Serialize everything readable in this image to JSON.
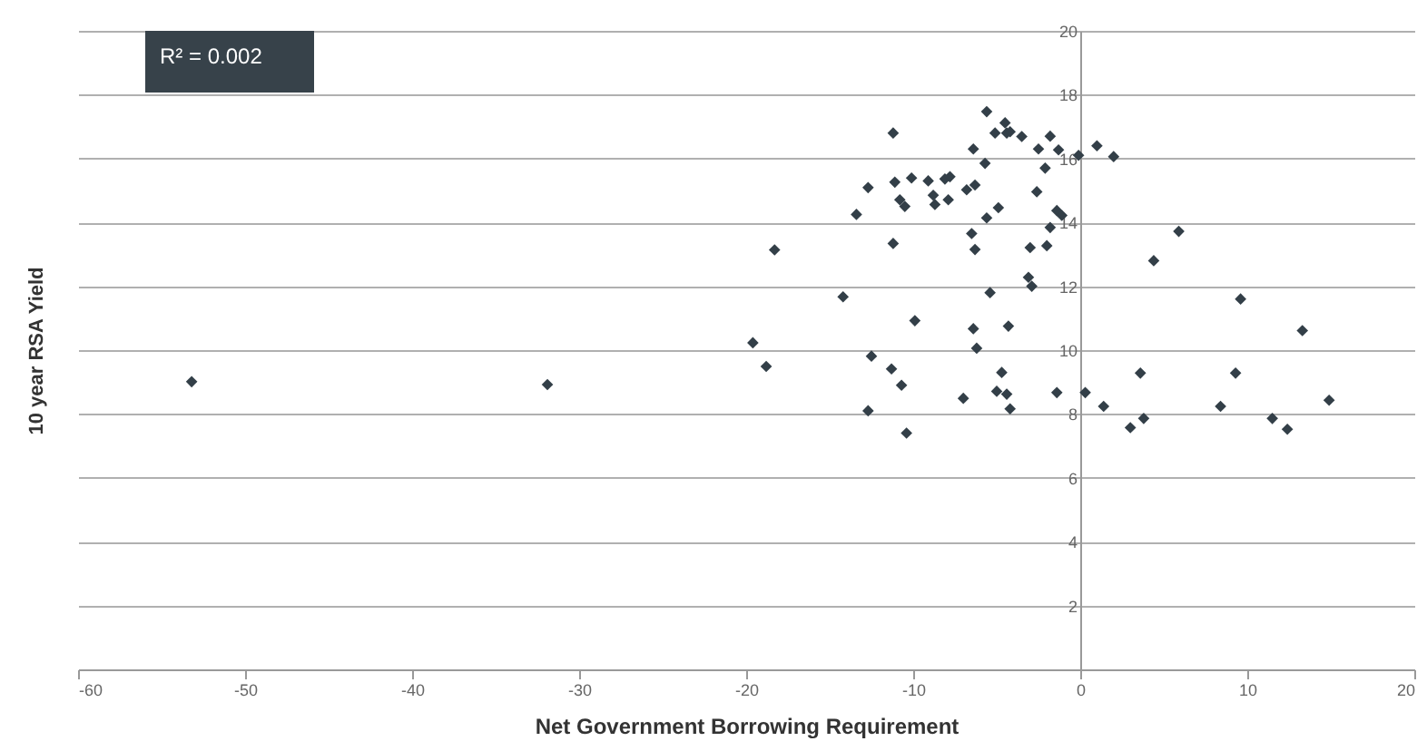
{
  "chart_data": {
    "type": "scatter",
    "xlabel": "Net Government Borrowing Requirement",
    "ylabel": "10 year RSA Yield",
    "annotations": [
      "R² = 0.002"
    ],
    "x": [
      -53.2,
      -31.9,
      -5.6,
      -4.5,
      -5.1,
      -4.4,
      -4.2,
      -3.5,
      -1.8,
      -11.2,
      -6.4,
      -2.5,
      -1.3,
      -0.1,
      -5.7,
      -2.1,
      -12.7,
      -11.1,
      -10.1,
      -9.1,
      -8.1,
      -7.8,
      -8.8,
      -8.7,
      -7.9,
      -6.8,
      -6.3,
      -10.8,
      -10.5,
      -13.4,
      -2.6,
      -5.6,
      -4.9,
      -1.4,
      -1.1,
      -1.8,
      -18.3,
      -11.2,
      -6.5,
      -6.3,
      -3.0,
      -2.0,
      -3.1,
      -2.9,
      -14.2,
      -5.4,
      -9.9,
      -6.4,
      -4.3,
      -6.2,
      -19.6,
      -18.8,
      -12.5,
      -11.3,
      -4.7,
      -10.7,
      -5.0,
      -4.4,
      -1.4,
      -7.0,
      -12.7,
      -4.2,
      -10.4,
      0.3,
      1.0,
      2.0,
      5.9,
      4.4,
      9.6,
      13.3,
      3.6,
      9.3,
      1.4,
      8.4,
      14.9,
      3.0,
      3.8,
      11.5,
      12.4
    ],
    "series": [
      {
        "color": "#333f48",
        "values": [
          9.01,
          8.92,
          17.47,
          17.12,
          16.8,
          16.8,
          16.84,
          16.69,
          16.7,
          16.8,
          16.3,
          16.3,
          16.27,
          16.1,
          15.85,
          15.7,
          15.09,
          15.26,
          15.39,
          15.3,
          15.36,
          15.43,
          14.85,
          14.56,
          14.71,
          15.02,
          15.17,
          14.71,
          14.5,
          14.25,
          14.96,
          14.14,
          14.46,
          14.37,
          14.22,
          13.84,
          13.14,
          13.34,
          13.65,
          13.15,
          13.21,
          13.27,
          12.28,
          12.0,
          11.67,
          11.8,
          10.92,
          10.67,
          10.75,
          10.06,
          10.23,
          9.49,
          9.81,
          9.41,
          9.3,
          8.9,
          8.71,
          8.62,
          8.67,
          8.49,
          8.1,
          8.16,
          7.4,
          8.67,
          16.4,
          16.06,
          13.72,
          12.8,
          11.6,
          10.61,
          9.28,
          9.28,
          8.24,
          8.24,
          8.43,
          7.57,
          7.86,
          7.86,
          7.52
        ]
      }
    ],
    "xlim": [
      -60,
      20
    ],
    "xticks": [
      -60,
      -50,
      -40,
      -30,
      -20,
      -10,
      0,
      10,
      20
    ],
    "ylim": [
      0,
      20
    ],
    "yticks": [
      {
        "value": 0,
        "label": null
      },
      2,
      4,
      6,
      8,
      10,
      12,
      14,
      16,
      18,
      20
    ],
    "grid": "y",
    "marker": "diamond"
  }
}
